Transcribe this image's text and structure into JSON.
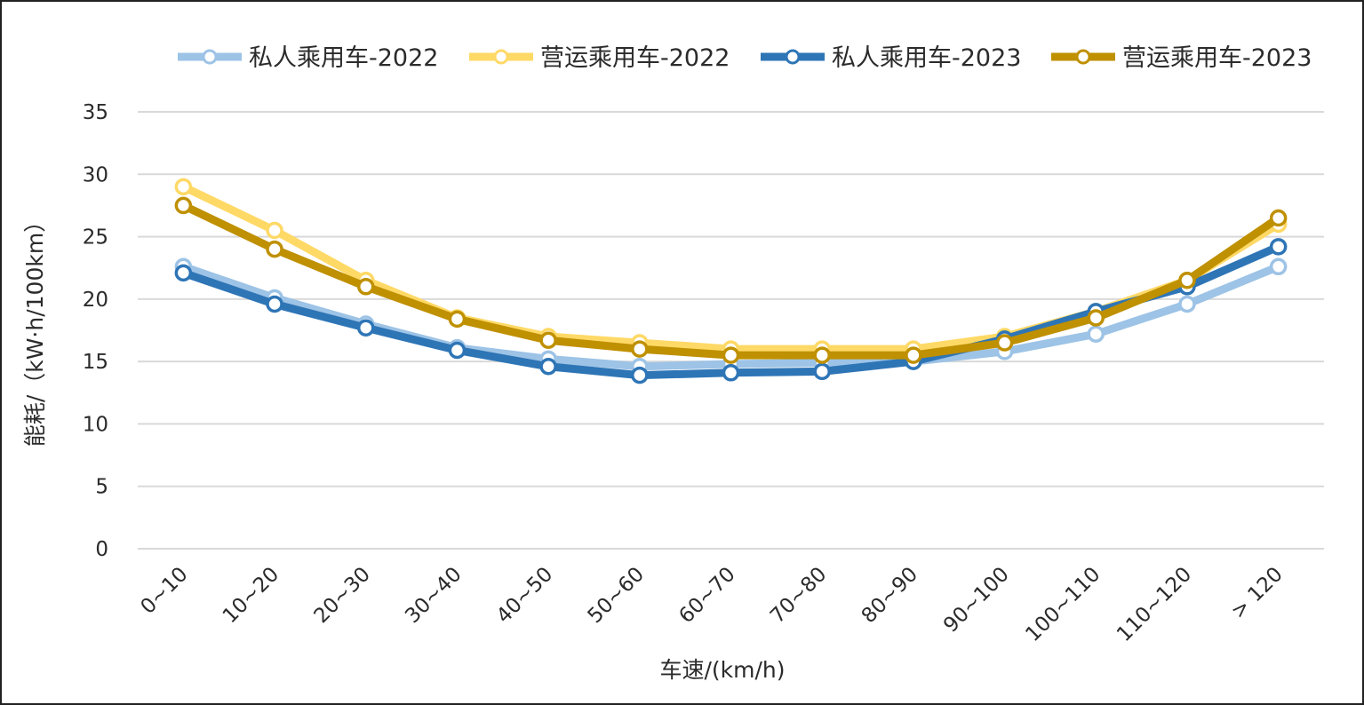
{
  "chart_data": {
    "type": "line",
    "xlabel": "车速/(km/h)",
    "ylabel": "能耗/（kW·h/100km）",
    "ylim": [
      0,
      35
    ],
    "yticks": [
      0,
      5,
      10,
      15,
      20,
      25,
      30,
      35
    ],
    "grid": true,
    "legend_position": "top-right",
    "categories": [
      "0~10",
      "10~20",
      "20~30",
      "30~40",
      "40~50",
      "50~60",
      "60~70",
      "70~80",
      "80~90",
      "90~100",
      "100~110",
      "110~120",
      "> 120"
    ],
    "series": [
      {
        "name": "私人乘用车-2022",
        "color": "#9dc3e6",
        "values": [
          22.6,
          20.1,
          18.0,
          16.1,
          15.2,
          14.6,
          14.8,
          14.9,
          15.0,
          15.8,
          17.2,
          19.6,
          22.6
        ]
      },
      {
        "name": "营运乘用车-2022",
        "color": "#ffd966",
        "values": [
          29.0,
          25.5,
          21.5,
          18.5,
          17.0,
          16.5,
          16.0,
          16.0,
          16.0,
          17.0,
          19.0,
          21.5,
          26.0
        ]
      },
      {
        "name": "私人乘用车-2023",
        "color": "#2e75b6",
        "values": [
          22.1,
          19.6,
          17.7,
          15.9,
          14.6,
          13.9,
          14.1,
          14.2,
          15.0,
          16.8,
          19.0,
          21.0,
          24.2
        ]
      },
      {
        "name": "营运乘用车-2023",
        "color": "#bf9000",
        "values": [
          27.5,
          24.0,
          21.0,
          18.4,
          16.7,
          16.0,
          15.5,
          15.5,
          15.5,
          16.5,
          18.5,
          21.5,
          26.5
        ]
      }
    ]
  }
}
